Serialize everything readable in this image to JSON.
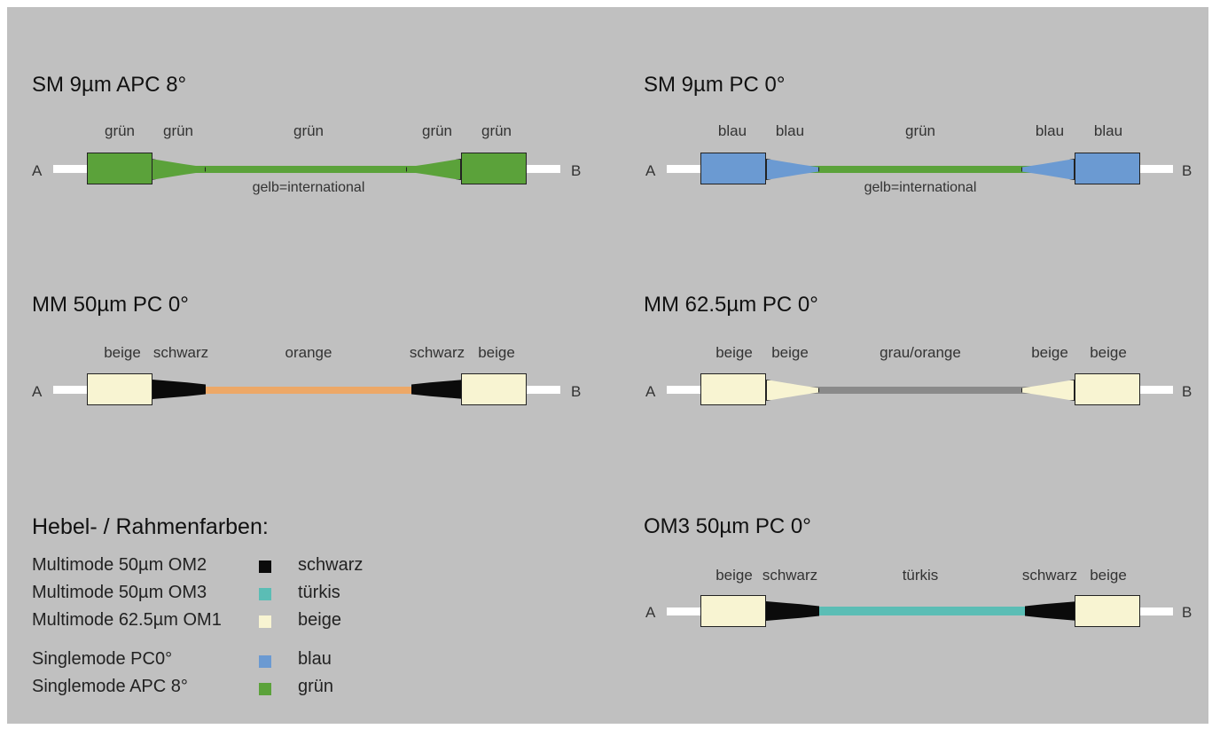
{
  "colors": {
    "gruen": "#5ba23a",
    "blau": "#6b9ad2",
    "beige": "#f8f4d2",
    "schwarz": "#0b0b0b",
    "tuerkis": "#5bbdb5",
    "orange": "#eda867",
    "grau": "#8a8a8a"
  },
  "diagrams": [
    {
      "title": "SM 9µm APC 8°",
      "end_a": "A",
      "end_b": "B",
      "labels": [
        "grün",
        "grün",
        "grün",
        "grün",
        "grün"
      ],
      "note": "gelb=international"
    },
    {
      "title": "SM 9µm PC 0°",
      "end_a": "A",
      "end_b": "B",
      "labels": [
        "blau",
        "blau",
        "grün",
        "blau",
        "blau"
      ],
      "note": "gelb=international"
    },
    {
      "title": "MM 50µm PC 0°",
      "end_a": "A",
      "end_b": "B",
      "labels": [
        "beige",
        "schwarz",
        "orange",
        "schwarz",
        "beige"
      ]
    },
    {
      "title": "MM 62.5µm PC 0°",
      "end_a": "A",
      "end_b": "B",
      "labels": [
        "beige",
        "beige",
        "grau/orange",
        "beige",
        "beige"
      ]
    },
    {
      "title": "OM3 50µm PC 0°",
      "end_a": "A",
      "end_b": "B",
      "labels": [
        "beige",
        "schwarz",
        "türkis",
        "schwarz",
        "beige"
      ]
    }
  ],
  "legend": {
    "title": "Hebel- / Rahmenfarben:",
    "items": [
      {
        "type": "Multimode 50µm OM2",
        "color_name": "schwarz",
        "color": "#0b0b0b"
      },
      {
        "type": "Multimode 50µm OM3",
        "color_name": "türkis",
        "color": "#5bbdb5"
      },
      {
        "type": "Multimode 62.5µm OM1",
        "color_name": "beige",
        "color": "#f8f4d2"
      },
      {
        "type": "Singlemode PC0°",
        "color_name": "blau",
        "color": "#6b9ad2"
      },
      {
        "type": "Singlemode APC 8°",
        "color_name": "grün",
        "color": "#5ba23a"
      }
    ]
  }
}
